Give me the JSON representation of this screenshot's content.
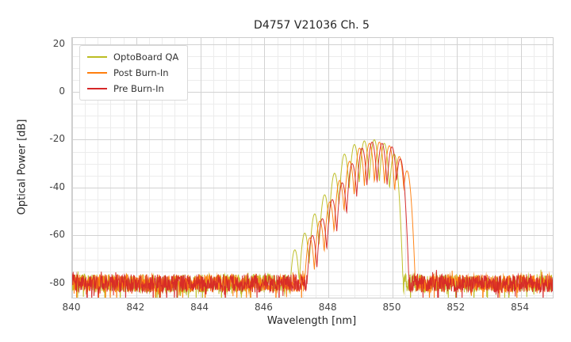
{
  "chart_data": {
    "type": "line",
    "title": "D4757 V21036 Ch. 5",
    "xlabel": "Wavelength [nm]",
    "ylabel": "Optical Power [dB]",
    "xlim": [
      840,
      855
    ],
    "ylim": [
      -86,
      22.5
    ],
    "xticks": [
      840,
      842,
      844,
      846,
      848,
      850,
      852,
      854
    ],
    "yticks": [
      20,
      0,
      -20,
      -40,
      -60,
      -80
    ],
    "grid": true,
    "legend_position": "upper left",
    "series": [
      {
        "name": "OptoBoard QA",
        "color": "#bcbd22",
        "noise_floor_db": -80,
        "mode_peaks_nm_db": [
          [
            846.95,
            -66
          ],
          [
            847.26,
            -59
          ],
          [
            847.57,
            -51
          ],
          [
            847.88,
            -43
          ],
          [
            848.19,
            -34
          ],
          [
            848.5,
            -26
          ],
          [
            848.81,
            -22
          ],
          [
            849.12,
            -20.5
          ],
          [
            849.43,
            -20
          ],
          [
            849.74,
            -21.5
          ],
          [
            850.05,
            -26
          ]
        ]
      },
      {
        "name": "Post Burn-In",
        "color": "#ff7f0e",
        "noise_floor_db": -80,
        "mode_peaks_nm_db": [
          [
            847.42,
            -61
          ],
          [
            847.73,
            -54
          ],
          [
            848.04,
            -46
          ],
          [
            848.35,
            -37
          ],
          [
            848.66,
            -29
          ],
          [
            848.97,
            -23.5
          ],
          [
            849.28,
            -21.5
          ],
          [
            849.59,
            -21
          ],
          [
            849.9,
            -22.5
          ],
          [
            850.21,
            -27
          ],
          [
            850.45,
            -33
          ]
        ]
      },
      {
        "name": "Pre Burn-In",
        "color": "#d62728",
        "noise_floor_db": -80,
        "mode_peaks_nm_db": [
          [
            847.5,
            -60
          ],
          [
            847.81,
            -53
          ],
          [
            848.12,
            -45
          ],
          [
            848.43,
            -38
          ],
          [
            848.74,
            -30
          ],
          [
            849.05,
            -23.5
          ],
          [
            849.36,
            -21
          ],
          [
            849.67,
            -21.5
          ],
          [
            849.98,
            -23
          ],
          [
            850.24,
            -28
          ]
        ]
      }
    ]
  }
}
